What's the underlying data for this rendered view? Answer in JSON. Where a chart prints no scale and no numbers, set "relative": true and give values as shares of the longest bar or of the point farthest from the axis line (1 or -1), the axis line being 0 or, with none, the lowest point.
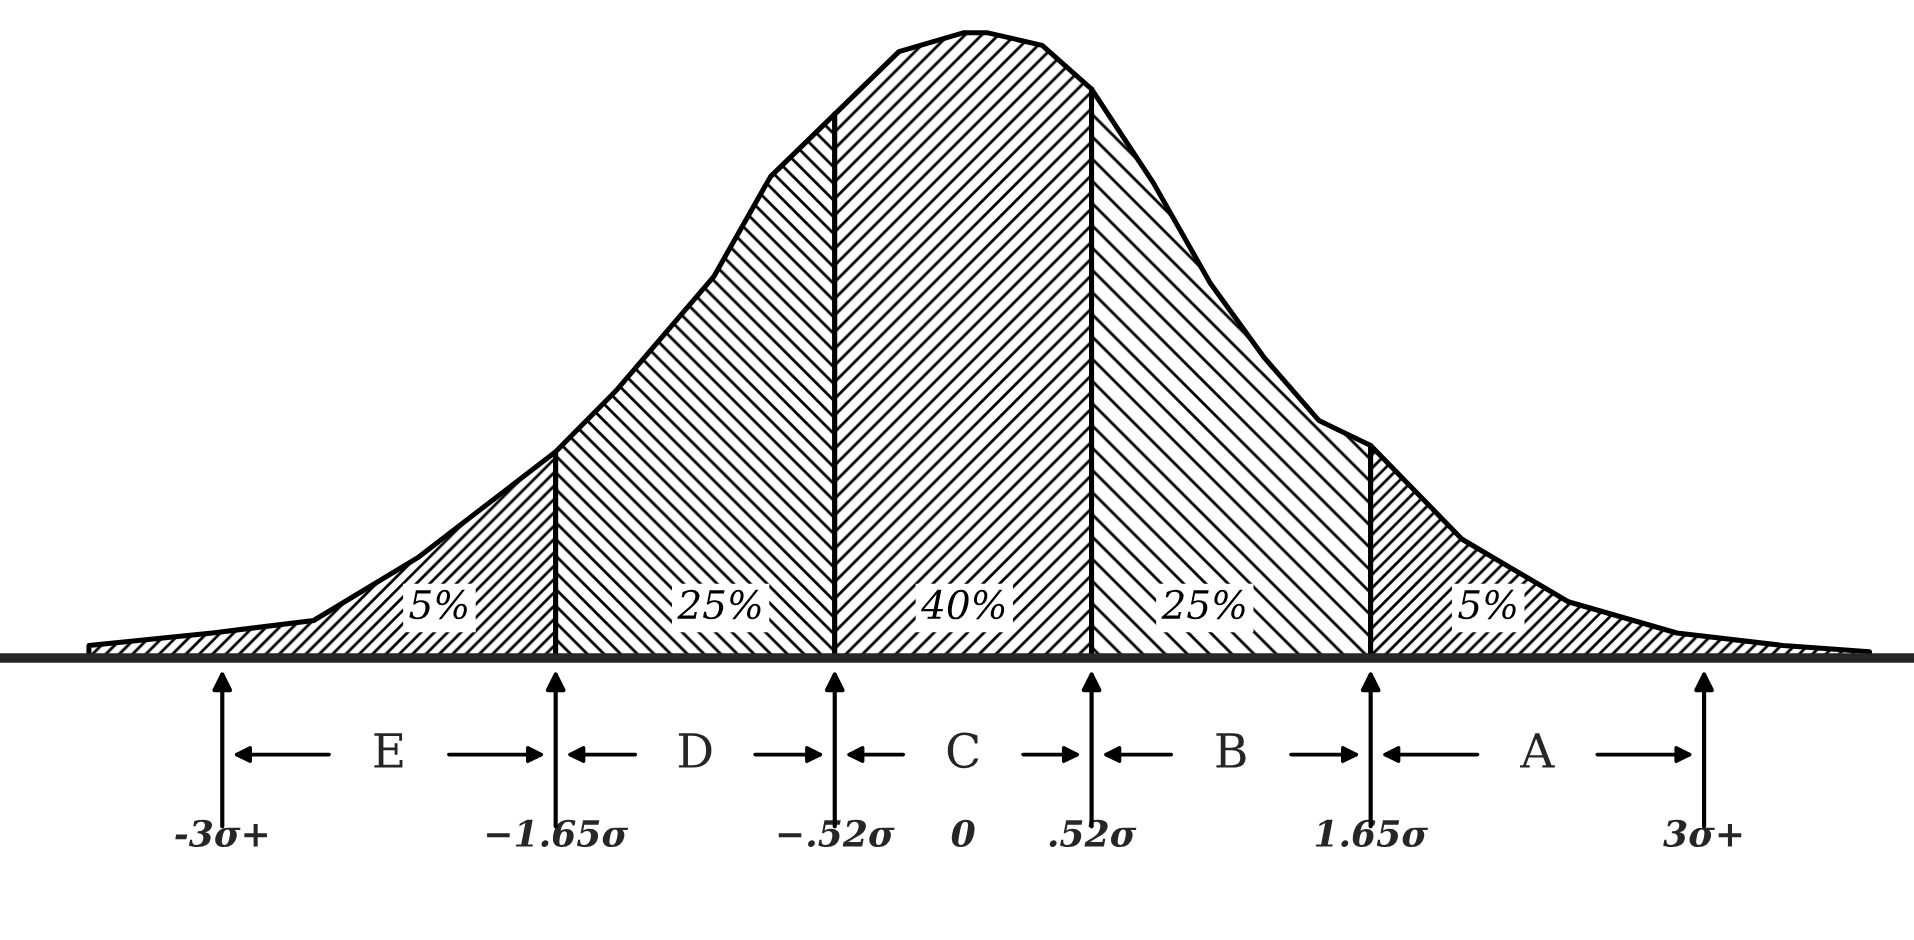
{
  "chart_data": {
    "type": "area",
    "relative": true,
    "series": [
      {
        "name": "5%",
        "color": "#000000",
        "x": [
          -3.54,
          -3.04,
          -2.63,
          -2.21,
          -1.65
        ],
        "values": [
          0.02,
          0.04,
          0.06,
          0.16,
          0.33
        ]
      },
      {
        "name": "25%",
        "color": "#000000",
        "x": [
          -1.65,
          -1.4,
          -1.01,
          -0.78,
          -0.52
        ],
        "values": [
          0.33,
          0.43,
          0.61,
          0.77,
          0.87
        ]
      },
      {
        "name": "40%",
        "color": "#000000",
        "x": [
          -0.52,
          -0.26,
          0,
          0.1,
          0.32,
          0.52
        ],
        "values": [
          0.87,
          0.97,
          1.0,
          1.0,
          0.98,
          0.91
        ]
      },
      {
        "name": "25%",
        "color": "#000000",
        "x": [
          0.52,
          0.77,
          1.0,
          1.22,
          1.44,
          1.65
        ],
        "values": [
          0.91,
          0.76,
          0.6,
          0.48,
          0.38,
          0.34
        ]
      },
      {
        "name": "5%",
        "color": "#000000",
        "x": [
          1.65,
          2.02,
          2.45,
          2.89,
          3.32,
          3.67
        ],
        "values": [
          0.34,
          0.19,
          0.09,
          0.04,
          0.02,
          0.01
        ]
      }
    ],
    "xlim": [
      -3.9,
      3.85
    ],
    "xticks": [
      {
        "value": -3,
        "label": "-3σ+"
      },
      {
        "value": -1.65,
        "label": "−1.65σ"
      },
      {
        "value": -0.52,
        "label": "−.52σ"
      },
      {
        "value": 0,
        "label": "0"
      },
      {
        "value": 0.52,
        "label": ".52σ"
      },
      {
        "value": 1.65,
        "label": "1.65σ"
      },
      {
        "value": 3,
        "label": "3σ+"
      }
    ],
    "annotations": [
      "E",
      "D",
      "C",
      "B",
      "A"
    ]
  }
}
